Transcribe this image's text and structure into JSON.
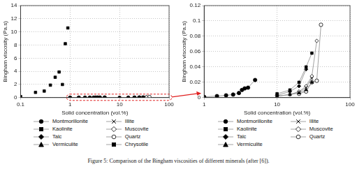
{
  "caption": "Figure 5: Comparison of the Bingham viscosities of different minerals (after [6]).",
  "chart_data": [
    {
      "type": "scatter",
      "x_label": "Solid concentration (vol.%)",
      "y_label": "Bingham viscosity (Pa.s)",
      "log": "x",
      "xlim": [
        0.1,
        100
      ],
      "xticks": [
        0.1,
        1,
        10,
        100
      ],
      "ylim": [
        0,
        14
      ],
      "yticks": [
        0,
        2,
        4,
        6,
        8,
        10,
        12,
        14
      ],
      "grid": true,
      "legend": "bottom",
      "series": [
        {
          "name": "Montmorillonite",
          "color": "#000000",
          "marker": "circle",
          "line_style": "none",
          "x": [
            1,
            1.5,
            2,
            2.5,
            3,
            3.3,
            3.6,
            4,
            5
          ],
          "values": [
            0.001,
            0.002,
            0.003,
            0.004,
            0.006,
            0.01,
            0.012,
            0.013,
            0.023
          ]
        },
        {
          "name": "Kaolinite",
          "color": "#000000",
          "marker": "square",
          "line_style": "none",
          "x": [
            10,
            15,
            20,
            25,
            30
          ],
          "values": [
            0.005,
            0.01,
            0.02,
            0.04,
            0.058
          ]
        },
        {
          "name": "Talc",
          "color": "#000000",
          "marker": "diamond",
          "line_style": "none",
          "x": [
            10,
            15,
            20,
            25
          ],
          "values": [
            0.003,
            0.008,
            0.015,
            0.037
          ]
        },
        {
          "name": "Vermiculite",
          "color": "#000000",
          "marker": "triangle",
          "line_style": "none",
          "x": [
            10,
            15,
            20,
            25,
            30
          ],
          "values": [
            0.002,
            0.004,
            0.006,
            0.01,
            0.02
          ]
        },
        {
          "name": "Illite",
          "color": "#000000",
          "marker": "x",
          "line_style": "none",
          "x": [
            10,
            15,
            20,
            25,
            30
          ],
          "values": [
            0.002,
            0.004,
            0.007,
            0.013,
            0.025
          ]
        },
        {
          "name": "Muscovite",
          "color": "#000000",
          "marker": "open_diamond",
          "line_style": "none",
          "x": [
            15,
            20,
            25,
            30,
            35
          ],
          "values": [
            0.004,
            0.008,
            0.015,
            0.028,
            0.074
          ]
        },
        {
          "name": "Quartz",
          "color": "#000000",
          "marker": "open_circle",
          "line_style": "none",
          "x": [
            20,
            25,
            30,
            35,
            40
          ],
          "values": [
            0.005,
            0.008,
            0.02,
            0.022,
            0.095
          ]
        },
        {
          "name": "Chrysotile",
          "color": "#000000",
          "marker": "square",
          "line_style": "none",
          "x": [
            0.1,
            0.2,
            0.3,
            0.4,
            0.5,
            0.6,
            0.7,
            0.8,
            0.9
          ],
          "values": [
            0.15,
            0.8,
            1.0,
            1.9,
            3.1,
            3.9,
            2.0,
            8.2,
            10.6
          ]
        }
      ]
    },
    {
      "type": "scatter",
      "x_label": "Solid concentration (vol.%)",
      "y_label": "Bingham viscosity (Pa.s)",
      "log": "x",
      "xlim": [
        1,
        100
      ],
      "xticks": [
        1,
        10,
        100
      ],
      "ylim": [
        0,
        0.12
      ],
      "yticks": [
        0,
        0.02,
        0.04,
        0.06,
        0.08,
        0.1,
        0.12
      ],
      "grid": true,
      "legend": "bottom",
      "series": [
        {
          "name": "Montmorillonite",
          "color": "#000000",
          "marker": "circle",
          "line_style": "solid",
          "x": [
            1,
            1.5,
            2,
            2.5,
            3,
            3.3,
            3.6,
            4,
            5
          ],
          "values": [
            0.001,
            0.002,
            0.003,
            0.004,
            0.006,
            0.01,
            0.012,
            0.013,
            0.023
          ]
        },
        {
          "name": "Kaolinite",
          "color": "#000000",
          "marker": "square",
          "line_style": "solid",
          "x": [
            10,
            15,
            20,
            25,
            30
          ],
          "values": [
            0.005,
            0.01,
            0.02,
            0.04,
            0.058
          ]
        },
        {
          "name": "Talc",
          "color": "#000000",
          "marker": "diamond",
          "line_style": "solid",
          "x": [
            10,
            15,
            20,
            25
          ],
          "values": [
            0.003,
            0.008,
            0.015,
            0.037
          ]
        },
        {
          "name": "Vermiculite",
          "color": "#000000",
          "marker": "triangle",
          "line_style": "solid",
          "x": [
            10,
            15,
            20,
            25,
            30
          ],
          "values": [
            0.002,
            0.004,
            0.006,
            0.01,
            0.02
          ]
        },
        {
          "name": "Illite",
          "color": "#000000",
          "marker": "x",
          "line_style": "solid",
          "x": [
            10,
            15,
            20,
            25,
            30
          ],
          "values": [
            0.002,
            0.004,
            0.007,
            0.013,
            0.025
          ]
        },
        {
          "name": "Muscovite",
          "color": "#000000",
          "marker": "open_diamond",
          "line_style": "solid",
          "x": [
            15,
            20,
            25,
            30,
            35
          ],
          "values": [
            0.004,
            0.008,
            0.015,
            0.028,
            0.074
          ]
        },
        {
          "name": "Quartz",
          "color": "#000000",
          "marker": "open_circle",
          "line_style": "solid",
          "x": [
            20,
            25,
            30,
            35,
            40
          ],
          "values": [
            0.005,
            0.008,
            0.02,
            0.022,
            0.095
          ]
        }
      ]
    }
  ]
}
